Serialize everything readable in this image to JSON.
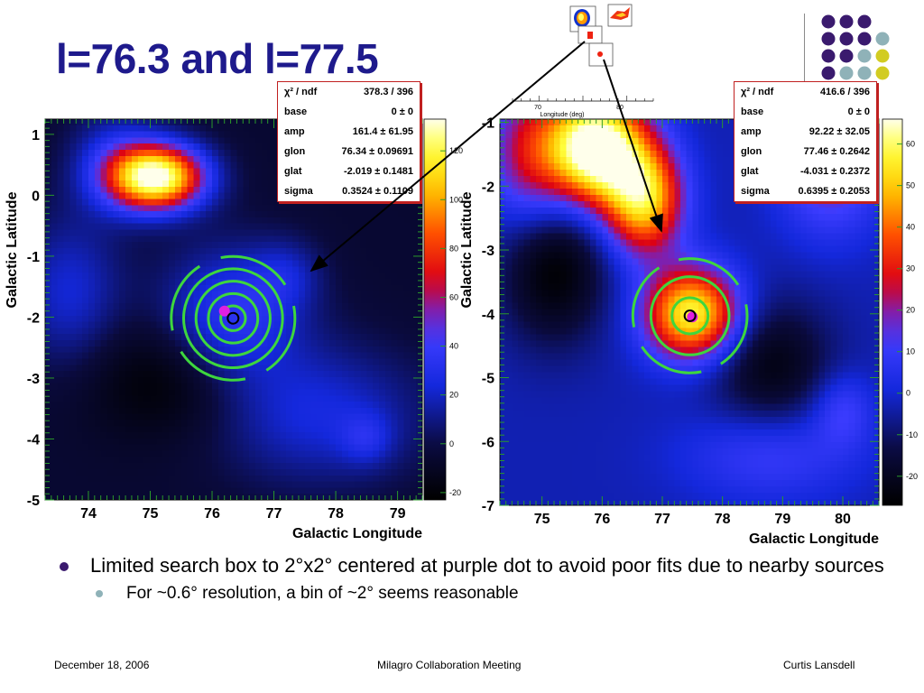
{
  "title": "l=76.3 and l=77.5",
  "colors": {
    "title": "#1e1a8c",
    "dot_purple": "#3a1a6e",
    "dot_teal": "#8fb2b8",
    "dot_yellow": "#d2cc22",
    "contour_green": "#3ed63e",
    "statbox_border": "#c02020"
  },
  "chart_data": [
    {
      "type": "heatmap",
      "xlabel": "Galactic Longitude",
      "ylabel": "Galactic Latitude",
      "xlim": [
        73.3,
        79.4
      ],
      "ylim": [
        -5.0,
        1.25
      ],
      "xticks": [
        "74",
        "75",
        "76",
        "77",
        "78",
        "79"
      ],
      "xtick_values": [
        74,
        75,
        76,
        77,
        78,
        79
      ],
      "yticks": [
        "1",
        "0",
        "-1",
        "-2",
        "-3",
        "-4",
        "-5"
      ],
      "ytick_values": [
        1,
        0,
        -1,
        -2,
        -3,
        -4,
        -5
      ],
      "colorbar": {
        "range": [
          -23,
          133
        ],
        "labels": [
          "120",
          "100",
          "80",
          "60",
          "40",
          "20",
          "0",
          "-20"
        ],
        "values": [
          120,
          100,
          80,
          60,
          40,
          20,
          0,
          -20
        ]
      },
      "background_level": -5,
      "sources": [
        {
          "glon": 75.1,
          "glat": 0.3,
          "sigma_l": 0.55,
          "sigma_b": 0.38,
          "amp": 140
        },
        {
          "glon": 74.4,
          "glat": 0.6,
          "sigma_l": 0.5,
          "sigma_b": 0.6,
          "amp": 25
        },
        {
          "glon": 76.3,
          "glat": -2.0,
          "sigma_l": 0.8,
          "sigma_b": 0.8,
          "amp": 42
        },
        {
          "glon": 73.7,
          "glat": -1.6,
          "sigma_l": 0.6,
          "sigma_b": 0.9,
          "amp": 28
        },
        {
          "glon": 77.7,
          "glat": -3.6,
          "sigma_l": 1.2,
          "sigma_b": 0.8,
          "amp": 30
        },
        {
          "glon": 78.5,
          "glat": -4.0,
          "sigma_l": 0.3,
          "sigma_b": 0.3,
          "amp": 18
        },
        {
          "glon": 77.2,
          "glat": -1.3,
          "sigma_l": 0.4,
          "sigma_b": 0.4,
          "amp": 18
        },
        {
          "glon": 75.4,
          "glat": -3.0,
          "sigma_l": 1.0,
          "sigma_b": 0.7,
          "amp": -22
        }
      ],
      "fit_center": {
        "glon": 76.34,
        "glat": -2.019
      },
      "purple_dot": {
        "glon": 76.2,
        "glat": -1.9
      },
      "contour_radii_deg": [
        0.2,
        0.4,
        0.6,
        0.8,
        1.0
      ],
      "stats": [
        {
          "key": "χ² / ndf",
          "value": "378.3 / 396"
        },
        {
          "key": "base",
          "value": "0 ±      0"
        },
        {
          "key": "amp",
          "value": "161.4 ± 61.95"
        },
        {
          "key": "glon",
          "value": "76.34 ± 0.09691"
        },
        {
          "key": "glat",
          "value": "-2.019 ± 0.1481"
        },
        {
          "key": "sigma",
          "value": "0.3524 ± 0.1109"
        }
      ]
    },
    {
      "type": "heatmap",
      "xlabel": "Galactic Longitude",
      "ylabel": "Galactic Latitude",
      "xlim": [
        74.3,
        80.6
      ],
      "ylim": [
        -7.0,
        -0.95
      ],
      "xticks": [
        "75",
        "76",
        "77",
        "78",
        "79",
        "80"
      ],
      "xtick_values": [
        75,
        76,
        77,
        78,
        79,
        80
      ],
      "yticks": [
        "-1",
        "-2",
        "-3",
        "-4",
        "-5",
        "-6",
        "-7"
      ],
      "ytick_values": [
        -1,
        -2,
        -3,
        -4,
        -5,
        -6,
        -7
      ],
      "colorbar": {
        "range": [
          -27,
          66
        ],
        "labels": [
          "60",
          "50",
          "40",
          "30",
          "20",
          "10",
          "0",
          "-10",
          "-20"
        ],
        "values": [
          60,
          50,
          40,
          30,
          20,
          10,
          0,
          -10,
          -20
        ]
      },
      "background_level": -3,
      "sources": [
        {
          "glon": 75.9,
          "glat": -1.4,
          "sigma_l": 0.55,
          "sigma_b": 0.6,
          "amp": 78
        },
        {
          "glon": 76.7,
          "glat": -2.2,
          "sigma_l": 0.45,
          "sigma_b": 0.6,
          "amp": 55
        },
        {
          "glon": 77.5,
          "glat": -4.0,
          "sigma_l": 0.55,
          "sigma_b": 0.5,
          "amp": 62
        },
        {
          "glon": 74.8,
          "glat": -1.5,
          "sigma_l": 0.5,
          "sigma_b": 0.8,
          "amp": 28
        },
        {
          "glon": 79.8,
          "glat": -1.8,
          "sigma_l": 0.6,
          "sigma_b": 0.7,
          "amp": 22
        },
        {
          "glon": 78.8,
          "glat": -6.2,
          "sigma_l": 1.0,
          "sigma_b": 0.5,
          "amp": 14
        },
        {
          "glon": 80.0,
          "glat": -5.5,
          "sigma_l": 0.35,
          "sigma_b": 0.4,
          "amp": 14
        },
        {
          "glon": 75.2,
          "glat": -3.3,
          "sigma_l": 0.6,
          "sigma_b": 0.8,
          "amp": -24
        },
        {
          "glon": 78.8,
          "glat": -4.8,
          "sigma_l": 0.7,
          "sigma_b": 0.7,
          "amp": -20
        }
      ],
      "fit_center": {
        "glon": 77.46,
        "glat": -4.031
      },
      "purple_dot": {
        "glon": 77.5,
        "glat": -4.05
      },
      "contour_radii_deg": [
        0.3,
        0.65,
        0.95
      ],
      "stats": [
        {
          "key": "χ² / ndf",
          "value": "416.6 / 396"
        },
        {
          "key": "base",
          "value": "0 ±      0"
        },
        {
          "key": "amp",
          "value": "92.22 ± 32.05"
        },
        {
          "key": "glon",
          "value": "77.46 ± 0.2642"
        },
        {
          "key": "glat",
          "value": "-4.031 ± 0.2372"
        },
        {
          "key": "sigma",
          "value": "0.6395 ± 0.2053"
        }
      ]
    }
  ],
  "inset": {
    "ticks": [
      "70",
      "80"
    ],
    "xlabel": "Longitude (deg)"
  },
  "bullets": {
    "main": "Limited search box to 2°x2° centered at purple dot to avoid poor fits due to nearby sources",
    "sub": "For ~0.6° resolution, a bin of ~2° seems reasonable"
  },
  "footer": {
    "date": "December 18, 2006",
    "meeting": "Milagro Collaboration Meeting",
    "author": "Curtis Lansdell"
  }
}
